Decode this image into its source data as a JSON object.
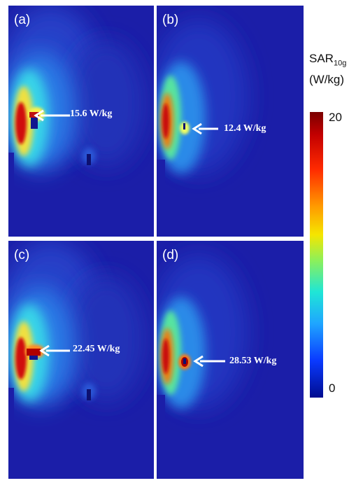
{
  "figure": {
    "colorbar": {
      "title_main": "SAR",
      "title_sub": "10g",
      "unit": "(W/kg)",
      "max_label": "20",
      "min_label": "0",
      "max_value": 20,
      "min_value": 0,
      "colormap": "jet"
    },
    "panels": [
      {
        "label": "(a)",
        "annotation": "15.6 W/kg",
        "peak_sar": 15.6
      },
      {
        "label": "(b)",
        "annotation": "12.4 W/kg",
        "peak_sar": 12.4
      },
      {
        "label": "(c)",
        "annotation": "22.45 W/kg",
        "peak_sar": 22.45
      },
      {
        "label": "(d)",
        "annotation": "28.53 W/kg",
        "peak_sar": 28.53
      }
    ],
    "colors": {
      "background": "#1b1ea8",
      "arrow": "#ffffff"
    }
  }
}
